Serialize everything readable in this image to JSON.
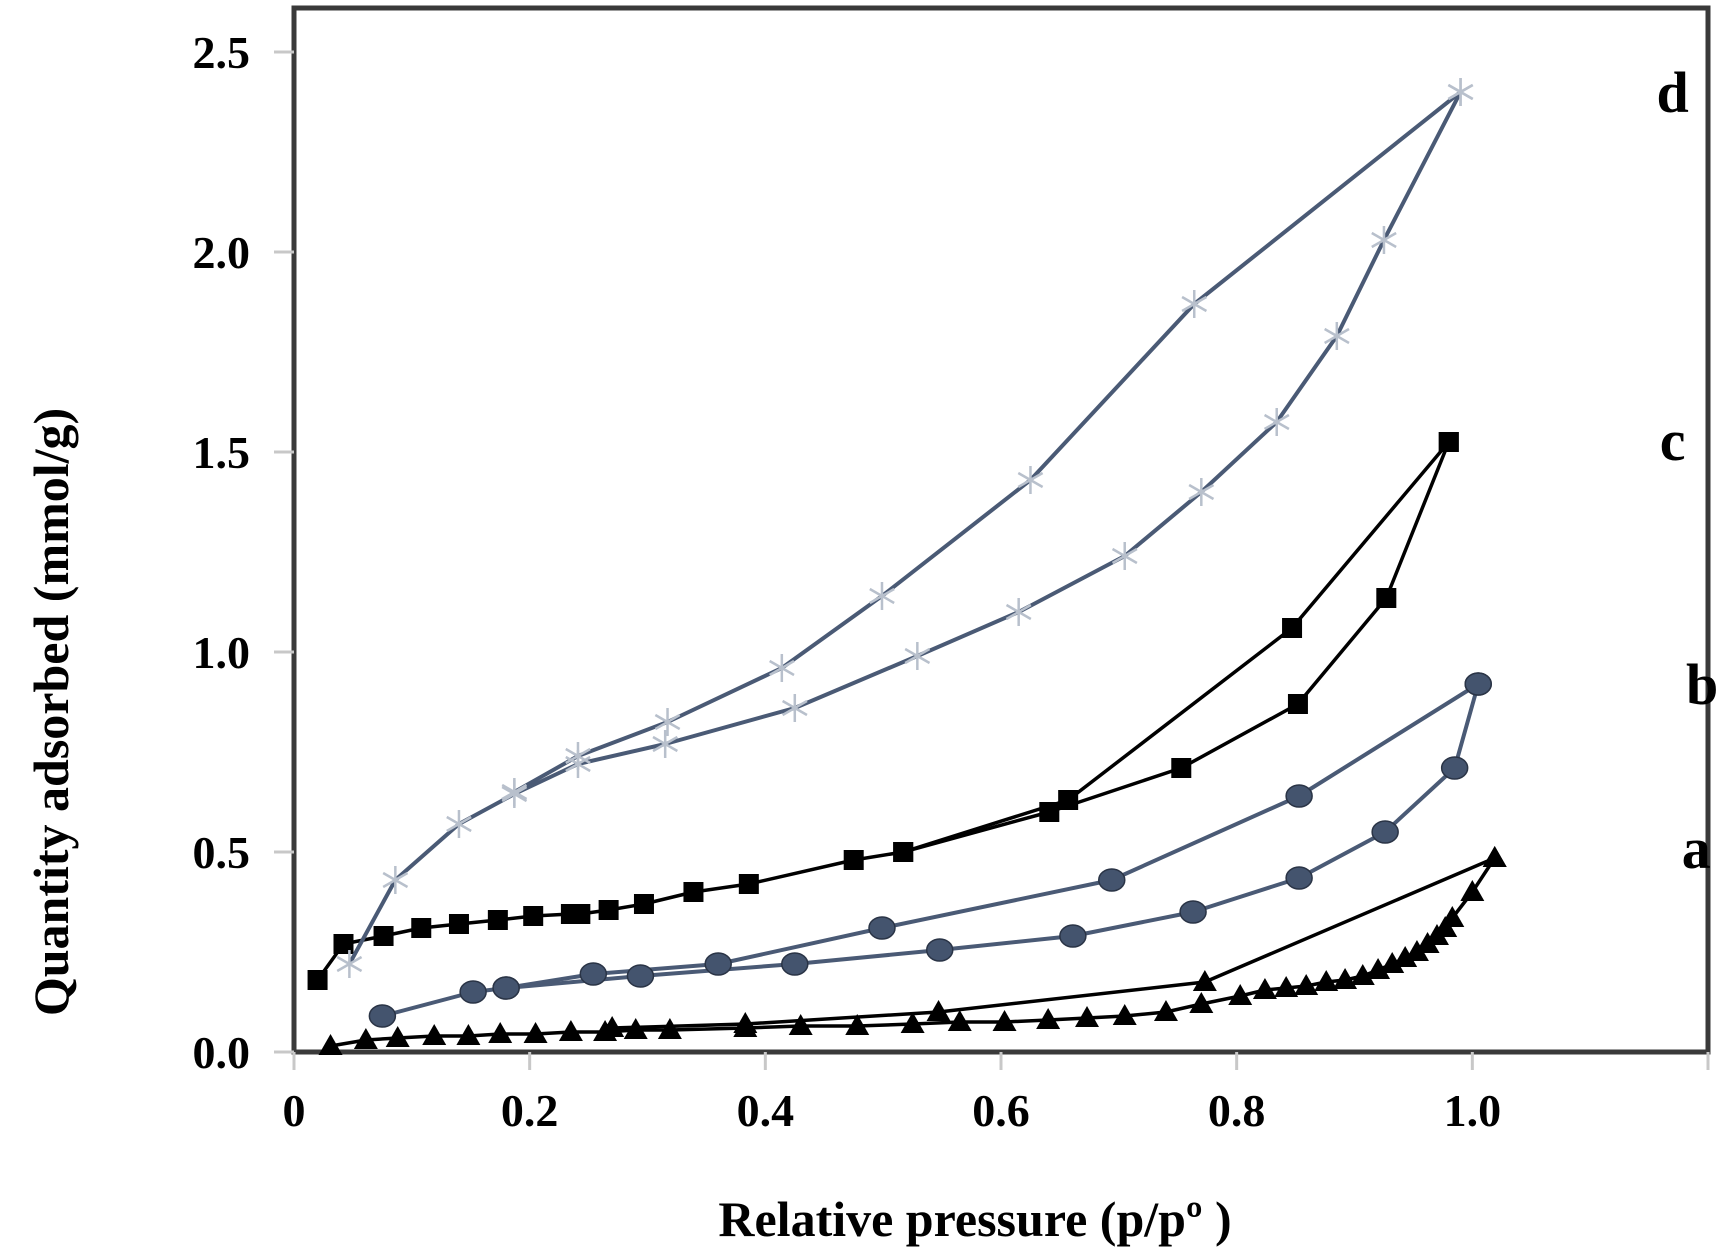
{
  "chart_data": {
    "type": "line",
    "title": "",
    "xlabel": "Relative pressure (p/pº )",
    "ylabel": "Quantity adsorbed (mmol/g)",
    "xlim": [
      0,
      1.2
    ],
    "ylim": [
      0,
      2.5
    ],
    "grid": false,
    "legend": "none (curves labeled a, b, c, d at right)",
    "x_ticks": [
      0,
      0.2,
      0.4,
      0.6,
      0.8,
      1.0
    ],
    "x_tick_labels": [
      "0",
      "0.2",
      "0.4",
      "0.6",
      "0.8",
      "1.0"
    ],
    "y_ticks": [
      0,
      0.5,
      1.0,
      1.5,
      2.0,
      2.5
    ],
    "y_tick_labels": [
      "0.0",
      "0.5",
      "1.0",
      "1.5",
      "2.0",
      "2.5"
    ],
    "series": [
      {
        "name": "a",
        "label": "a",
        "marker": "triangle",
        "color": "#000000",
        "marker_color": "#000000",
        "adsorption": {
          "x": [
            0.031,
            0.061,
            0.088,
            0.119,
            0.148,
            0.175,
            0.205,
            0.235,
            0.264,
            0.29,
            0.319,
            0.383,
            0.43,
            0.478,
            0.525,
            0.565,
            0.603,
            0.64,
            0.673,
            0.705,
            0.74,
            0.77,
            0.803,
            0.824,
            0.842,
            0.859,
            0.876,
            0.892,
            0.907,
            0.92,
            0.932,
            0.943,
            0.953,
            0.962,
            0.97,
            0.977,
            0.983,
            1.0,
            1.019
          ],
          "y": [
            0.015,
            0.03,
            0.035,
            0.04,
            0.04,
            0.045,
            0.045,
            0.05,
            0.05,
            0.055,
            0.055,
            0.06,
            0.065,
            0.065,
            0.07,
            0.075,
            0.075,
            0.08,
            0.085,
            0.09,
            0.1,
            0.12,
            0.14,
            0.155,
            0.16,
            0.165,
            0.175,
            0.18,
            0.19,
            0.205,
            0.22,
            0.235,
            0.25,
            0.27,
            0.29,
            0.31,
            0.335,
            0.4,
            0.485
          ]
        },
        "desorption": {
          "x": [
            1.019,
            0.773,
            0.547,
            0.383,
            0.27
          ],
          "y": [
            0.485,
            0.175,
            0.1,
            0.07,
            0.06
          ]
        }
      },
      {
        "name": "b",
        "label": "b",
        "marker": "circle",
        "color": "#4a5a75",
        "marker_color": "#44546e",
        "adsorption": {
          "x": [
            0.075,
            0.152,
            0.18,
            0.294,
            0.425,
            0.548,
            0.661,
            0.763,
            0.853,
            0.926,
            0.985,
            1.005
          ],
          "y": [
            0.09,
            0.15,
            0.16,
            0.19,
            0.22,
            0.255,
            0.29,
            0.35,
            0.435,
            0.55,
            0.71,
            0.92
          ]
        },
        "desorption": {
          "x": [
            1.005,
            0.853,
            0.694,
            0.499,
            0.36,
            0.254,
            0.18
          ],
          "y": [
            0.92,
            0.64,
            0.43,
            0.31,
            0.22,
            0.195,
            0.16
          ]
        }
      },
      {
        "name": "c",
        "label": "c",
        "marker": "square",
        "color": "#000000",
        "marker_color": "#000000",
        "adsorption": {
          "x": [
            0.02,
            0.042,
            0.076,
            0.108,
            0.14,
            0.173,
            0.203,
            0.235,
            0.243,
            0.267,
            0.297,
            0.339,
            0.386,
            0.475,
            0.517,
            0.641,
            0.753,
            0.852,
            0.927,
            0.98
          ],
          "y": [
            0.18,
            0.27,
            0.29,
            0.31,
            0.32,
            0.33,
            0.34,
            0.345,
            0.345,
            0.355,
            0.37,
            0.4,
            0.42,
            0.48,
            0.5,
            0.6,
            0.71,
            0.87,
            1.135,
            1.525
          ]
        },
        "desorption": {
          "x": [
            0.98,
            0.847,
            0.657,
            0.517
          ],
          "y": [
            1.525,
            1.06,
            0.63,
            0.5
          ]
        }
      },
      {
        "name": "d",
        "label": "d",
        "marker": "asterisk",
        "color": "#4a5a75",
        "marker_color": "#b8c0cc",
        "adsorption": {
          "x": [
            0.047,
            0.086,
            0.14,
            0.187,
            0.241,
            0.315,
            0.425,
            0.529,
            0.615,
            0.705,
            0.77,
            0.834,
            0.885,
            0.925,
            0.99
          ],
          "y": [
            0.22,
            0.43,
            0.57,
            0.645,
            0.72,
            0.77,
            0.86,
            0.99,
            1.1,
            1.24,
            1.4,
            1.575,
            1.79,
            2.03,
            2.4
          ]
        },
        "desorption": {
          "x": [
            0.99,
            0.764,
            0.625,
            0.499,
            0.414,
            0.317,
            0.241,
            0.187
          ],
          "y": [
            2.4,
            1.87,
            1.43,
            1.14,
            0.96,
            0.825,
            0.74,
            0.65
          ]
        }
      }
    ],
    "series_label_positions": [
      {
        "name": "a",
        "x": 1.19,
        "y": 0.46
      },
      {
        "name": "b",
        "x": 1.195,
        "y": 0.87
      },
      {
        "name": "c",
        "x": 1.17,
        "y": 1.48
      },
      {
        "name": "d",
        "x": 1.17,
        "y": 2.35
      }
    ]
  }
}
